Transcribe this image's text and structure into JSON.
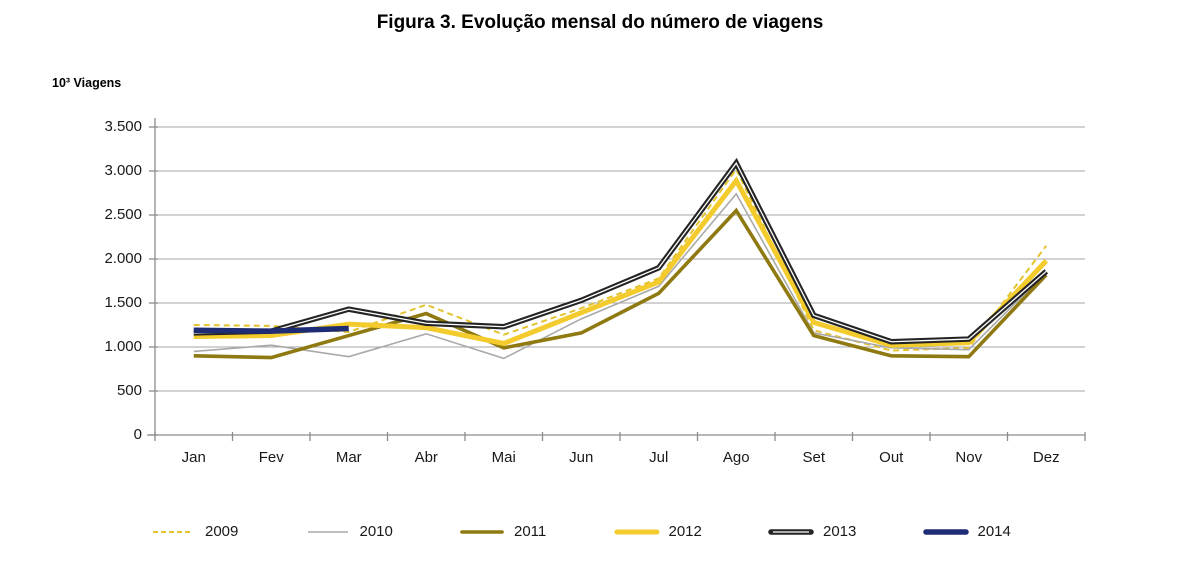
{
  "chart_data": {
    "type": "line",
    "title": "Figura 3. Evolução mensal do número de viagens",
    "ylabel": "10³ Viagens",
    "xlabel": "",
    "categories": [
      "Jan",
      "Fev",
      "Mar",
      "Abr",
      "Mai",
      "Jun",
      "Jul",
      "Ago",
      "Set",
      "Out",
      "Nov",
      "Dez"
    ],
    "y_ticks": [
      "3.500",
      "3.000",
      "2.500",
      "2.000",
      "1.500",
      "1.000",
      "500",
      "0"
    ],
    "y_tick_values": [
      3500,
      3000,
      2500,
      2000,
      1500,
      1000,
      500,
      0
    ],
    "ylim": [
      0,
      3500
    ],
    "grid": true,
    "legend_position": "bottom",
    "axis_color": "#8c8c8c",
    "grid_color": "#a6a6a6",
    "series": [
      {
        "name": "2009",
        "color": "#e4c22f",
        "width": 2,
        "dash": "6 4",
        "values": [
          1250,
          1240,
          1170,
          1480,
          1140,
          1440,
          1780,
          3020,
          1190,
          960,
          990,
          2150
        ]
      },
      {
        "name": "2010",
        "color": "#a9a9a9",
        "width": 1.6,
        "values": [
          950,
          1020,
          890,
          1150,
          870,
          1320,
          1690,
          2740,
          1160,
          990,
          970,
          1850
        ]
      },
      {
        "name": "2011",
        "color": "#8f7911",
        "width": 3.6,
        "values": [
          900,
          880,
          1130,
          1380,
          990,
          1160,
          1610,
          2550,
          1130,
          900,
          890,
          1820
        ]
      },
      {
        "name": "2012",
        "color": "#f3cb2d",
        "width": 5,
        "values": [
          1120,
          1130,
          1260,
          1220,
          1040,
          1390,
          1740,
          2890,
          1280,
          1020,
          1050,
          1980
        ]
      },
      {
        "name": "2013",
        "color": "#242424",
        "width": 5.5,
        "inner_white": true,
        "values": [
          1160,
          1180,
          1430,
          1270,
          1230,
          1530,
          1900,
          3090,
          1360,
          1060,
          1090,
          1860
        ]
      },
      {
        "name": "2014",
        "color": "#1e2b75",
        "width": 5.5,
        "values": [
          1190,
          1180,
          1210
        ]
      }
    ]
  }
}
